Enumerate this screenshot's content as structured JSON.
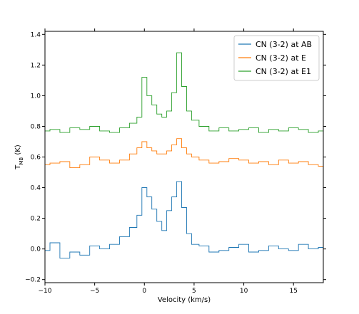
{
  "chart_data": {
    "type": "line",
    "xlabel": "Velocity (km/s)",
    "ylabel_main": "T",
    "ylabel_sub": "MB",
    "ylabel_unit": " (K)",
    "xlim": [
      -10,
      18
    ],
    "ylim": [
      -0.22,
      1.42
    ],
    "xticks": [
      -10,
      -5,
      0,
      5,
      10,
      15
    ],
    "xtick_labels": [
      "−10",
      "−5",
      "0",
      "5",
      "10",
      "15"
    ],
    "yticks": [
      -0.2,
      0.0,
      0.2,
      0.4,
      0.6,
      0.8,
      1.0,
      1.2,
      1.4
    ],
    "ytick_labels": [
      "−0.2",
      "0.0",
      "0.2",
      "0.4",
      "0.6",
      "0.8",
      "1.0",
      "1.2",
      "1.4"
    ],
    "legend_position": "top-right",
    "step": true,
    "series": [
      {
        "name": "CN (3-2) at AB",
        "color": "#1f77b4",
        "x": [
          -10,
          -9,
          -8,
          -7,
          -6,
          -5,
          -4,
          -3,
          -2,
          -1,
          -0.5,
          0,
          0.5,
          1,
          1.5,
          2,
          2.5,
          3,
          3.5,
          4,
          4.5,
          5,
          6,
          7,
          8,
          9,
          10,
          11,
          12,
          13,
          14,
          15,
          16,
          17,
          18
        ],
        "y": [
          -0.01,
          0.04,
          -0.06,
          -0.02,
          -0.04,
          0.02,
          0.0,
          0.03,
          0.08,
          0.14,
          0.22,
          0.4,
          0.34,
          0.26,
          0.18,
          0.12,
          0.25,
          0.34,
          0.44,
          0.27,
          0.1,
          0.03,
          0.02,
          -0.02,
          -0.01,
          0.01,
          0.03,
          -0.02,
          -0.01,
          0.02,
          0.0,
          -0.01,
          0.03,
          0.0,
          0.01
        ]
      },
      {
        "name": "CN (3-2) at E",
        "color": "#ff7f0e",
        "x": [
          -10,
          -9,
          -8,
          -7,
          -6,
          -5,
          -4,
          -3,
          -2,
          -1,
          -0.5,
          0,
          0.5,
          1,
          1.5,
          2,
          2.5,
          3,
          3.5,
          4,
          4.5,
          5,
          6,
          7,
          8,
          9,
          10,
          11,
          12,
          13,
          14,
          15,
          16,
          17,
          18
        ],
        "y": [
          0.55,
          0.56,
          0.57,
          0.53,
          0.55,
          0.6,
          0.58,
          0.56,
          0.58,
          0.62,
          0.66,
          0.7,
          0.66,
          0.64,
          0.62,
          0.62,
          0.64,
          0.68,
          0.72,
          0.66,
          0.62,
          0.6,
          0.58,
          0.56,
          0.57,
          0.59,
          0.58,
          0.56,
          0.57,
          0.55,
          0.58,
          0.56,
          0.57,
          0.55,
          0.54
        ]
      },
      {
        "name": "CN (3-2) at E1",
        "color": "#2ca02c",
        "x": [
          -10,
          -9,
          -8,
          -7,
          -6,
          -5,
          -4,
          -3,
          -2,
          -1,
          -0.5,
          0,
          0.5,
          1,
          1.5,
          2,
          2.5,
          3,
          3.5,
          4,
          4.5,
          5,
          6,
          7,
          8,
          9,
          10,
          11,
          12,
          13,
          14,
          15,
          16,
          17,
          18
        ],
        "y": [
          0.77,
          0.78,
          0.76,
          0.79,
          0.78,
          0.8,
          0.77,
          0.76,
          0.79,
          0.82,
          0.86,
          1.12,
          1.0,
          0.94,
          0.88,
          0.86,
          0.9,
          1.02,
          1.28,
          1.06,
          0.9,
          0.84,
          0.8,
          0.77,
          0.79,
          0.77,
          0.78,
          0.79,
          0.76,
          0.78,
          0.77,
          0.79,
          0.78,
          0.76,
          0.77
        ]
      }
    ]
  }
}
